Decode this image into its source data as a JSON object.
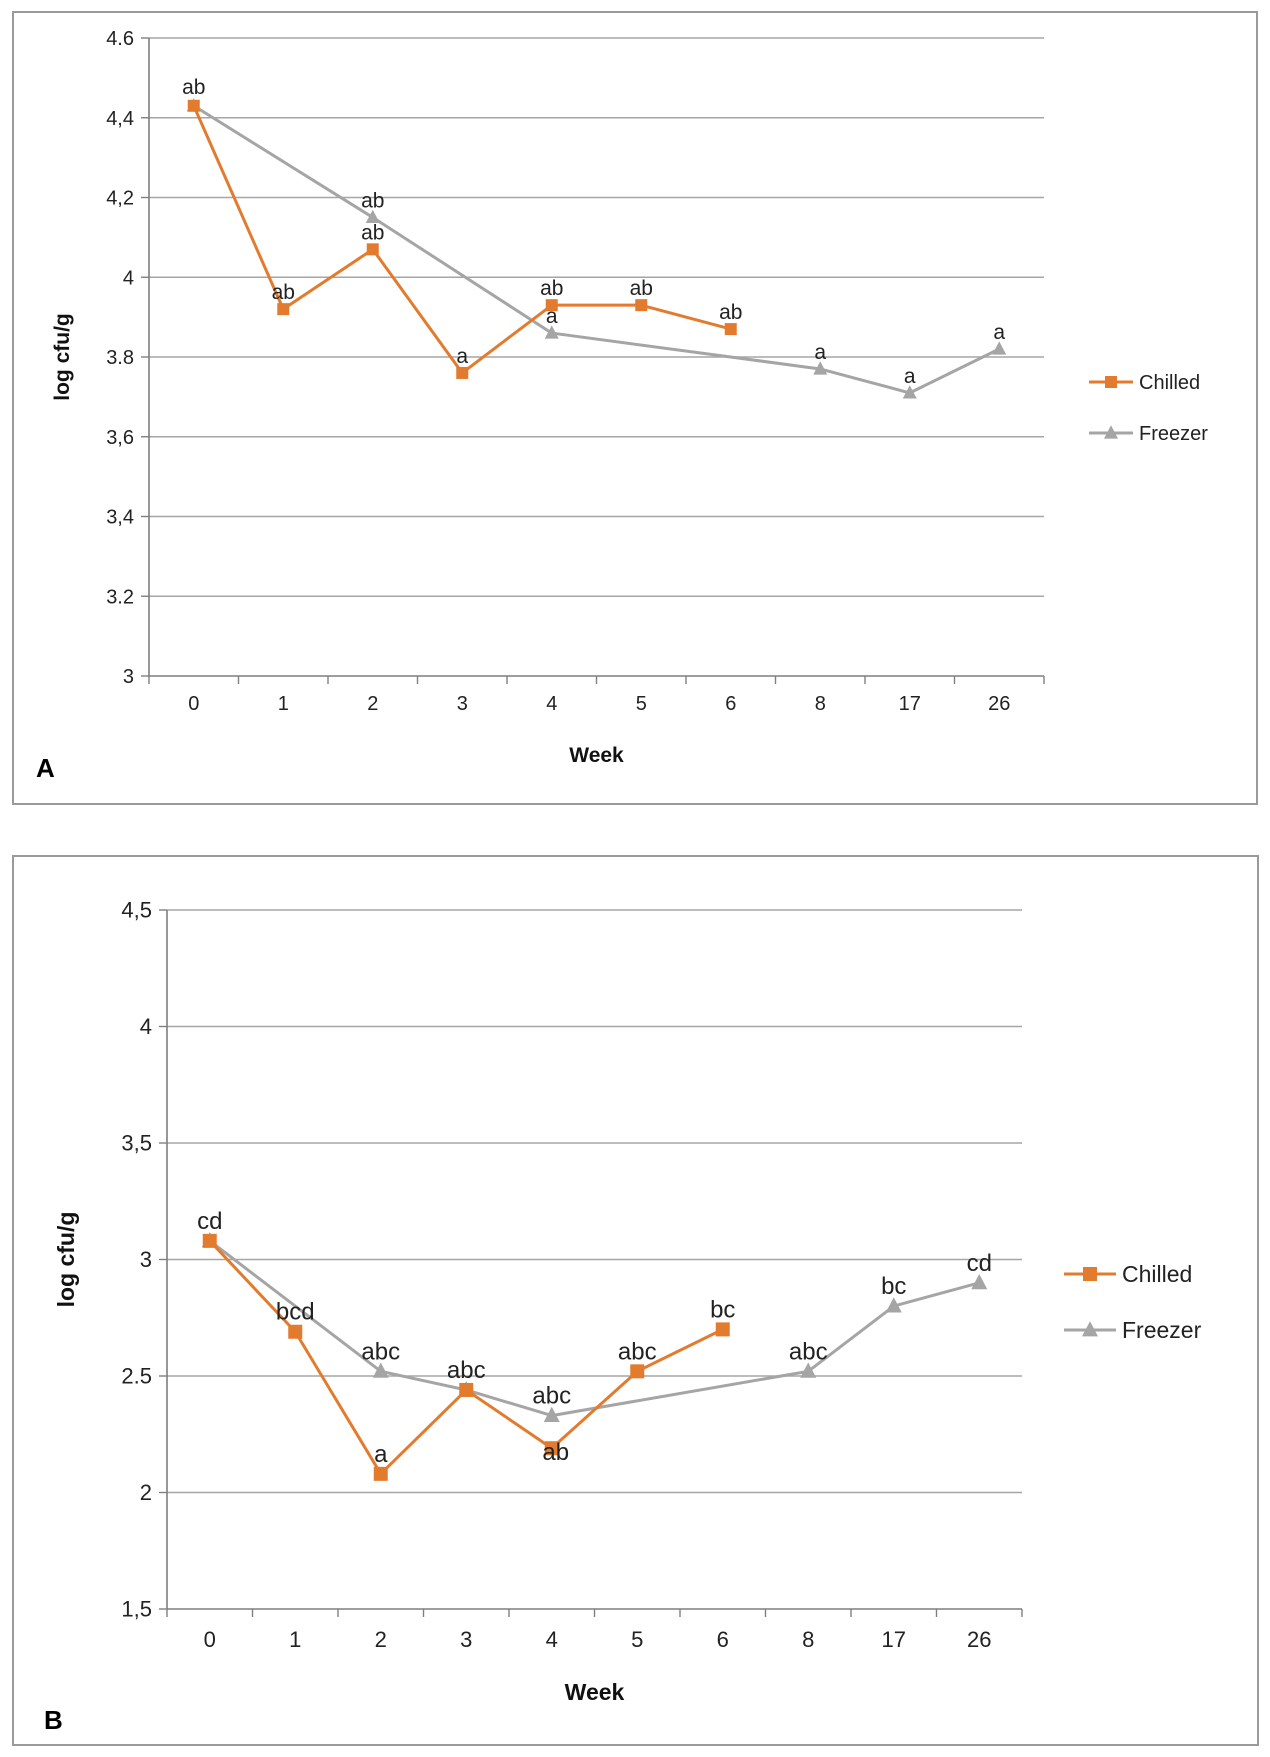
{
  "colors": {
    "chilled": "#E37B2E",
    "freezer": "#A5A5A5",
    "grid": "#A6A6A6",
    "axis": "#7f7f7f",
    "border": "#9a9a9a"
  },
  "chart_data": [
    {
      "panel": "A",
      "type": "line",
      "categories": [
        "0",
        "1",
        "2",
        "3",
        "4",
        "5",
        "6",
        "8",
        "17",
        "26"
      ],
      "xlabel": "Week",
      "ylabel": "log cfu/g",
      "ylim": [
        3,
        4.6
      ],
      "yticks": [
        "3",
        "3.2",
        "3,4",
        "3,6",
        "3.8",
        "4",
        "4,2",
        "4,4",
        "4.6"
      ],
      "yticks_values": [
        3,
        3.2,
        3.4,
        3.6,
        3.8,
        4,
        4.2,
        4.4,
        4.6
      ],
      "grid": true,
      "legend": "right",
      "series": [
        {
          "name": "Chilled",
          "marker": "square",
          "color": "#E37B2E",
          "values": [
            4.43,
            3.92,
            4.07,
            3.76,
            3.93,
            3.93,
            3.87,
            null,
            null,
            null
          ],
          "labels": [
            "ab",
            "ab",
            "ab",
            "a",
            "ab",
            "ab",
            "ab",
            null,
            null,
            null
          ]
        },
        {
          "name": "Freezer",
          "marker": "triangle",
          "color": "#A5A5A5",
          "values": [
            4.43,
            null,
            4.15,
            null,
            3.86,
            null,
            null,
            3.77,
            3.71,
            3.82
          ],
          "labels": [
            null,
            null,
            "ab",
            null,
            "a",
            null,
            null,
            "a",
            "a",
            "a"
          ]
        }
      ]
    },
    {
      "panel": "B",
      "type": "line",
      "categories": [
        "0",
        "1",
        "2",
        "3",
        "4",
        "5",
        "6",
        "8",
        "17",
        "26"
      ],
      "xlabel": "Week",
      "ylabel": "log cfu/g",
      "ylim": [
        1.5,
        4.5
      ],
      "yticks": [
        "1,5",
        "2",
        "2.5",
        "3",
        "3,5",
        "4",
        "4,5"
      ],
      "yticks_values": [
        1.5,
        2,
        2.5,
        3,
        3.5,
        4,
        4.5
      ],
      "grid": true,
      "legend": "right",
      "series": [
        {
          "name": "Chilled",
          "marker": "square",
          "color": "#E37B2E",
          "values": [
            3.08,
            2.69,
            2.08,
            2.44,
            2.19,
            2.52,
            2.7,
            null,
            null,
            null
          ],
          "labels": [
            "cd",
            "bcd",
            "a",
            "abc",
            "ab",
            "abc",
            "bc",
            null,
            null,
            null
          ]
        },
        {
          "name": "Freezer",
          "marker": "triangle",
          "color": "#A5A5A5",
          "values": [
            3.08,
            null,
            2.52,
            2.44,
            2.33,
            null,
            null,
            2.52,
            2.8,
            2.9
          ],
          "labels": [
            null,
            null,
            "abc",
            null,
            "abc",
            null,
            null,
            "abc",
            "bc",
            "cd"
          ]
        }
      ]
    }
  ]
}
